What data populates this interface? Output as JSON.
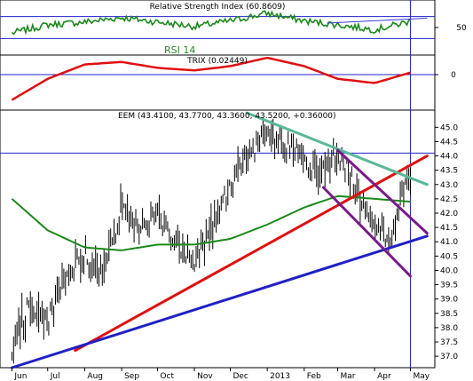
{
  "chart_data": [
    {
      "type": "line",
      "panel": "rsi",
      "title": "Relative Strength Index (60.8609)",
      "overlay_label": "RSI 14",
      "ylim": [
        0,
        100
      ],
      "y_ticks": [
        50
      ],
      "reference_levels": [
        30,
        70
      ],
      "series": [
        {
          "color": "#1a8a1a",
          "x": [
            "2012-06-01",
            "2012-07-01",
            "2012-08-01",
            "2012-09-01",
            "2012-10-01",
            "2012-11-01",
            "2012-12-01",
            "2013-01-01",
            "2013-02-01",
            "2013-03-01",
            "2013-04-01",
            "2013-05-01"
          ],
          "values": [
            40,
            55,
            60,
            68,
            60,
            52,
            62,
            76,
            62,
            55,
            46,
            61
          ]
        }
      ],
      "trendline_color": "#3a3ad8"
    },
    {
      "type": "line",
      "panel": "trix",
      "title": "TRIX (0.02449)",
      "y_ticks": [
        0
      ],
      "zero_line": 0,
      "series": [
        {
          "color": "#e01010",
          "x": [
            "2012-06-01",
            "2012-07-01",
            "2012-08-01",
            "2012-09-01",
            "2012-10-01",
            "2012-11-01",
            "2012-12-01",
            "2013-01-01",
            "2013-02-01",
            "2013-03-01",
            "2013-04-01",
            "2013-05-01"
          ],
          "values": [
            -0.3,
            -0.05,
            0.12,
            0.15,
            0.08,
            0.05,
            0.1,
            0.2,
            0.1,
            -0.05,
            -0.1,
            0.024
          ]
        }
      ]
    },
    {
      "type": "line",
      "panel": "price",
      "title": "EEM (43.4100, 43.7700, 43.3600, 43.5200, +0.36000)",
      "ylim": [
        36.6,
        45.6
      ],
      "y_ticks": [
        "37.0",
        "37.5",
        "38.0",
        "38.5",
        "39.0",
        "39.5",
        "40.0",
        "40.5",
        "41.0",
        "41.5",
        "42.0",
        "42.5",
        "43.0",
        "43.5",
        "44.0",
        "44.5",
        "45.0"
      ],
      "x_ticks": [
        "Jun",
        "Jul",
        "Aug",
        "Sep",
        "Oct",
        "Nov",
        "Dec",
        "2013",
        "Feb",
        "Mar",
        "Apr",
        "May"
      ],
      "series": [
        {
          "type": "ohlc",
          "color": "#000000",
          "x": [
            "2012-06-01",
            "2012-06-15",
            "2012-07-01",
            "2012-07-15",
            "2012-08-01",
            "2012-08-15",
            "2012-09-01",
            "2012-09-15",
            "2012-10-01",
            "2012-10-15",
            "2012-11-01",
            "2012-11-15",
            "2012-12-01",
            "2012-12-15",
            "2013-01-01",
            "2013-01-15",
            "2013-02-01",
            "2013-02-15",
            "2013-03-01",
            "2013-03-15",
            "2013-04-01",
            "2013-04-15",
            "2013-05-01"
          ],
          "values": [
            37.3,
            38.8,
            38.2,
            39.6,
            40.6,
            39.8,
            42.2,
            41.5,
            41.9,
            41.1,
            40.4,
            41.5,
            42.9,
            44.0,
            44.7,
            44.3,
            44.0,
            43.3,
            44.1,
            43.0,
            41.6,
            41.1,
            43.5
          ]
        },
        {
          "type": "moving-average",
          "color": "#1a8a1a",
          "x": [
            "2012-06-01",
            "2012-07-01",
            "2012-08-01",
            "2012-09-01",
            "2012-10-01",
            "2012-11-01",
            "2012-12-01",
            "2013-01-01",
            "2013-02-01",
            "2013-03-01",
            "2013-04-01",
            "2013-05-01"
          ],
          "values": [
            42.5,
            41.4,
            40.8,
            40.7,
            40.9,
            40.9,
            41.1,
            41.6,
            42.2,
            42.6,
            42.5,
            42.4
          ]
        }
      ],
      "trendlines": [
        {
          "color": "#e01010",
          "from": [
            "2012-07-24",
            37.2
          ],
          "to": [
            "2013-05-15",
            44.0
          ]
        },
        {
          "color": "#2020c8",
          "from": [
            "2012-06-01",
            36.6
          ],
          "to": [
            "2013-05-15",
            41.2
          ]
        },
        {
          "color": "#5ab89a",
          "from": [
            "2012-12-15",
            45.5
          ],
          "to": [
            "2013-05-15",
            43.0
          ]
        },
        {
          "color": "#7a1a8a",
          "from": [
            "2013-02-17",
            42.9
          ],
          "to": [
            "2013-05-01",
            39.8
          ]
        },
        {
          "color": "#7a1a8a",
          "from": [
            "2013-03-01",
            44.2
          ],
          "to": [
            "2013-05-15",
            41.3
          ]
        }
      ],
      "reference_lines": [
        {
          "type": "horizontal",
          "value": 44.1,
          "color": "#2020c8"
        },
        {
          "type": "vertical",
          "x": "2013-05-01",
          "color": "#2020c8"
        }
      ]
    }
  ]
}
